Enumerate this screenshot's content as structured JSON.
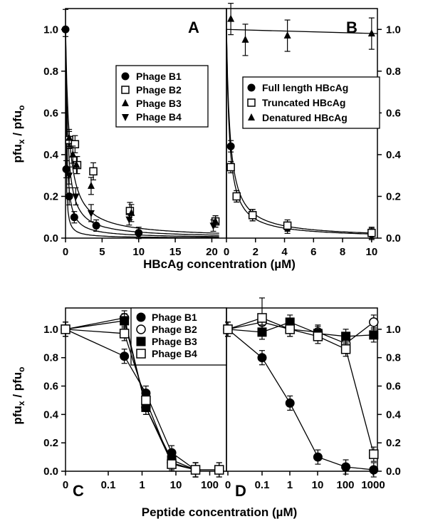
{
  "chart_data": [
    {
      "panel": "A",
      "type": "scatter",
      "xlabel": "HBcAg concentration (µM)",
      "ylabel": "pfux / pfuo",
      "xlim": [
        0,
        22
      ],
      "ylim": [
        0,
        1.1
      ],
      "xticks": [
        0,
        5,
        10,
        15,
        20
      ],
      "yticks": [
        0.0,
        0.2,
        0.4,
        0.6,
        0.8,
        1.0
      ],
      "ytick_labels": [
        "0.0",
        "0.2",
        "0.4",
        "0.6",
        "0.8",
        "1.0"
      ],
      "legend_position": "upper-middle",
      "series": [
        {
          "name": "Phage B1",
          "marker": "filled-circle",
          "x": [
            0,
            0.1,
            0.5,
            1.2,
            4.2,
            10
          ],
          "y": [
            1.0,
            0.33,
            0.2,
            0.1,
            0.06,
            0.025
          ],
          "k": 0.05
        },
        {
          "name": "Phage B2",
          "marker": "open-square",
          "x": [
            0.5,
            1.3,
            1.6,
            3.8,
            8.8,
            20.5
          ],
          "y": [
            0.47,
            0.45,
            0.35,
            0.32,
            0.13,
            0.08
          ],
          "k": 0.5
        },
        {
          "name": "Phage B3",
          "marker": "filled-triangle",
          "x": [
            0.5,
            1.0,
            1.5,
            3.5,
            9.0,
            20.5
          ],
          "y": [
            0.48,
            0.4,
            0.35,
            0.25,
            0.12,
            0.08
          ],
          "k": 0.3
        },
        {
          "name": "Phage B4",
          "marker": "filled-inverted-triangle",
          "x": [
            0.5,
            1.4,
            3.5,
            8.7,
            20.2
          ],
          "y": [
            0.3,
            0.2,
            0.12,
            0.09,
            0.06
          ],
          "k": 0.15
        }
      ]
    },
    {
      "panel": "B",
      "type": "scatter",
      "xlim": [
        0,
        10.4
      ],
      "ylim": [
        0,
        1.1
      ],
      "xticks": [
        0,
        2,
        4,
        6,
        8,
        10
      ],
      "yticks": [
        0.0,
        0.2,
        0.4,
        0.6,
        0.8,
        1.0
      ],
      "ytick_labels": [
        "0.0",
        "0.2",
        "0.4",
        "0.6",
        "0.8",
        "1.0"
      ],
      "legend_position": "upper-right",
      "series": [
        {
          "name": "Full length HBcAg",
          "marker": "filled-circle",
          "x": [
            0.3,
            0.7,
            1.8,
            4.2,
            10
          ],
          "y": [
            0.44,
            0.2,
            0.11,
            0.05,
            0.02
          ],
          "k": 0.2
        },
        {
          "name": "Truncated HBcAg",
          "marker": "open-square",
          "x": [
            0.3,
            0.7,
            1.8,
            4.2,
            10
          ],
          "y": [
            0.34,
            0.2,
            0.11,
            0.06,
            0.025
          ],
          "k": 0.25
        },
        {
          "name": "Denatured HBcAg",
          "marker": "filled-triangle",
          "x": [
            0.3,
            1.3,
            4.2,
            10
          ],
          "y": [
            1.05,
            0.95,
            0.97,
            0.98
          ],
          "line": [
            1.0,
            0.98
          ]
        }
      ]
    },
    {
      "panel": "C",
      "type": "line",
      "ylabel": "pfux / pfuo",
      "xscale": "log",
      "xticks": [
        "0",
        "0.1",
        "1",
        "10",
        "100"
      ],
      "yticks": [
        0.0,
        0.2,
        0.4,
        0.6,
        0.8,
        1.0
      ],
      "ytick_labels": [
        "0.0",
        "0.2",
        "0.4",
        "0.6",
        "0.8",
        "1.0"
      ],
      "ylim": [
        0,
        1.15
      ],
      "legend_position": "top-right",
      "series": [
        {
          "name": "Phage B1",
          "marker": "filled-circle",
          "x": [
            0,
            0.3,
            1.3,
            7.5,
            38
          ],
          "y": [
            1.0,
            0.81,
            0.55,
            0.13,
            0.01
          ]
        },
        {
          "name": "Phage B2",
          "marker": "open-circle",
          "x": [
            0,
            0.3,
            1.3,
            7.5,
            38,
            190
          ],
          "y": [
            1.0,
            1.08,
            0.45,
            0.06,
            0.01,
            0.01
          ]
        },
        {
          "name": "Phage B3",
          "marker": "filled-square",
          "x": [
            0,
            0.3,
            1.3,
            7.5,
            38
          ],
          "y": [
            1.0,
            1.06,
            0.45,
            0.08,
            0.01
          ]
        },
        {
          "name": "Phage B4",
          "marker": "open-square",
          "x": [
            0,
            0.3,
            1.3,
            7.5,
            38,
            190
          ],
          "y": [
            1.0,
            0.97,
            0.5,
            0.05,
            0.01,
            0.01
          ]
        }
      ]
    },
    {
      "panel": "D",
      "type": "line",
      "xscale": "log",
      "xticks": [
        "0",
        "0.1",
        "1",
        "10",
        "100",
        "1000"
      ],
      "yticks": [
        0.0,
        0.2,
        0.4,
        0.6,
        0.8,
        1.0
      ],
      "ytick_labels": [
        "0.0",
        "0.2",
        "0.4",
        "0.6",
        "0.8",
        "1.0"
      ],
      "ylim": [
        0,
        1.15
      ],
      "series": [
        {
          "marker": "filled-circle",
          "x": [
            0,
            0.1,
            1,
            10,
            100,
            1000
          ],
          "y": [
            1.0,
            0.8,
            0.48,
            0.1,
            0.03,
            0.01
          ]
        },
        {
          "marker": "open-circle",
          "x": [
            0,
            0.1,
            1,
            10,
            100,
            1000
          ],
          "y": [
            1.0,
            1.05,
            1.0,
            0.98,
            0.9,
            1.05
          ]
        },
        {
          "marker": "filled-square",
          "x": [
            0,
            0.1,
            1,
            10,
            100,
            1000
          ],
          "y": [
            1.0,
            0.98,
            1.05,
            0.97,
            0.95,
            0.96
          ]
        },
        {
          "marker": "open-square",
          "x": [
            0,
            0.1,
            1,
            10,
            100,
            1000
          ],
          "y": [
            1.0,
            1.08,
            1.0,
            0.95,
            0.86,
            0.12
          ]
        }
      ]
    }
  ],
  "figure": {
    "top_xlabel": "HBcAg concentration (µM)",
    "bottom_xlabel": "Peptide concentration (µM)",
    "ylabel_main": "pfu",
    "ylabel_sub_x": "x",
    "ylabel_sep": " / pfu",
    "ylabel_sub_o": "o",
    "panel_labels": [
      "A",
      "B",
      "C",
      "D"
    ]
  }
}
